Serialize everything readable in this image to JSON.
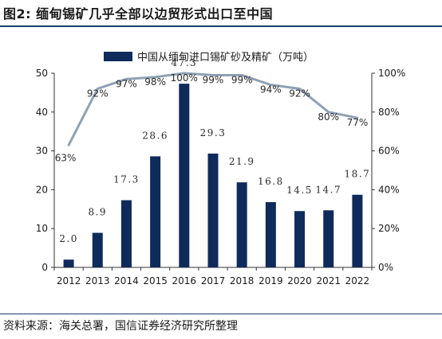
{
  "figure": {
    "title": "图2: 缅甸锡矿几乎全部以边贸形式出口至中国",
    "source": "资料来源：海关总署，国信证券经济研究所整理"
  },
  "chart_data": {
    "type": "bar",
    "categories": [
      "2012",
      "2013",
      "2014",
      "2015",
      "2016",
      "2017",
      "2018",
      "2019",
      "2020",
      "2021",
      "2022"
    ],
    "series": [
      {
        "name": "中国从缅甸进口锡矿砂及精矿（万吨）",
        "type": "bar",
        "axis": "left",
        "color": "#0f2b5b",
        "values": [
          2.0,
          8.9,
          17.3,
          28.6,
          47.3,
          29.3,
          21.9,
          16.8,
          14.5,
          14.7,
          18.7
        ],
        "labels": [
          "2.0",
          "8.9",
          "17.3",
          "28.6",
          "47.3",
          "29.3",
          "21.9",
          "16.8",
          "14.5",
          "14.7",
          "18.7"
        ]
      },
      {
        "type": "line",
        "axis": "right",
        "color": "#8fa1b5",
        "values": [
          63,
          92,
          97,
          98,
          100,
          99,
          99,
          94,
          92,
          80,
          77
        ],
        "labels": [
          "63%",
          "92%",
          "97%",
          "98%",
          "100%",
          "99%",
          "99%",
          "94%",
          "92%",
          "80%",
          "77%"
        ]
      }
    ],
    "y_left": {
      "min": 0,
      "max": 50,
      "ticks": [
        "0",
        "10",
        "20",
        "30",
        "40",
        "50"
      ]
    },
    "y_right": {
      "min": 0,
      "max": 100,
      "ticks": [
        "0%",
        "20%",
        "40%",
        "60%",
        "80%",
        "100%"
      ]
    },
    "grid": false,
    "legend": "top-center"
  }
}
